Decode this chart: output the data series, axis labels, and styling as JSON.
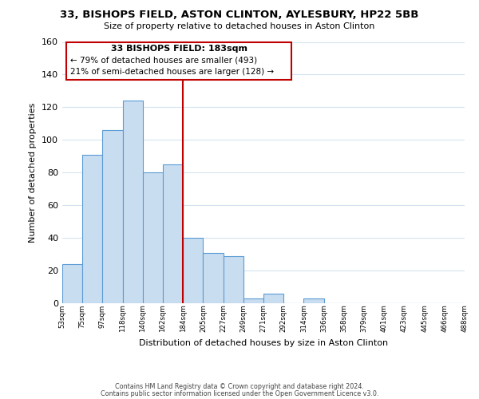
{
  "title": "33, BISHOPS FIELD, ASTON CLINTON, AYLESBURY, HP22 5BB",
  "subtitle": "Size of property relative to detached houses in Aston Clinton",
  "xlabel": "Distribution of detached houses by size in Aston Clinton",
  "ylabel": "Number of detached properties",
  "bin_labels": [
    "53sqm",
    "75sqm",
    "97sqm",
    "118sqm",
    "140sqm",
    "162sqm",
    "184sqm",
    "205sqm",
    "227sqm",
    "249sqm",
    "271sqm",
    "292sqm",
    "314sqm",
    "336sqm",
    "358sqm",
    "379sqm",
    "401sqm",
    "423sqm",
    "445sqm",
    "466sqm",
    "488sqm"
  ],
  "bar_heights": [
    24,
    91,
    106,
    124,
    80,
    85,
    40,
    31,
    29,
    3,
    6,
    0,
    3,
    0,
    0,
    0,
    0,
    0,
    0,
    0
  ],
  "bar_color": "#c8ddf0",
  "bar_edge_color": "#5b9bd5",
  "property_line_bin_index": 6,
  "ylim": [
    0,
    160
  ],
  "yticks": [
    0,
    20,
    40,
    60,
    80,
    100,
    120,
    140,
    160
  ],
  "annotation_title": "33 BISHOPS FIELD: 183sqm",
  "annotation_line1": "← 79% of detached houses are smaller (493)",
  "annotation_line2": "21% of semi-detached houses are larger (128) →",
  "annotation_box_color": "#ffffff",
  "annotation_box_border": "#c00000",
  "footer_line1": "Contains HM Land Registry data © Crown copyright and database right 2024.",
  "footer_line2": "Contains public sector information licensed under the Open Government Licence v3.0.",
  "bg_color": "#ffffff",
  "grid_color": "#d4e3f0"
}
